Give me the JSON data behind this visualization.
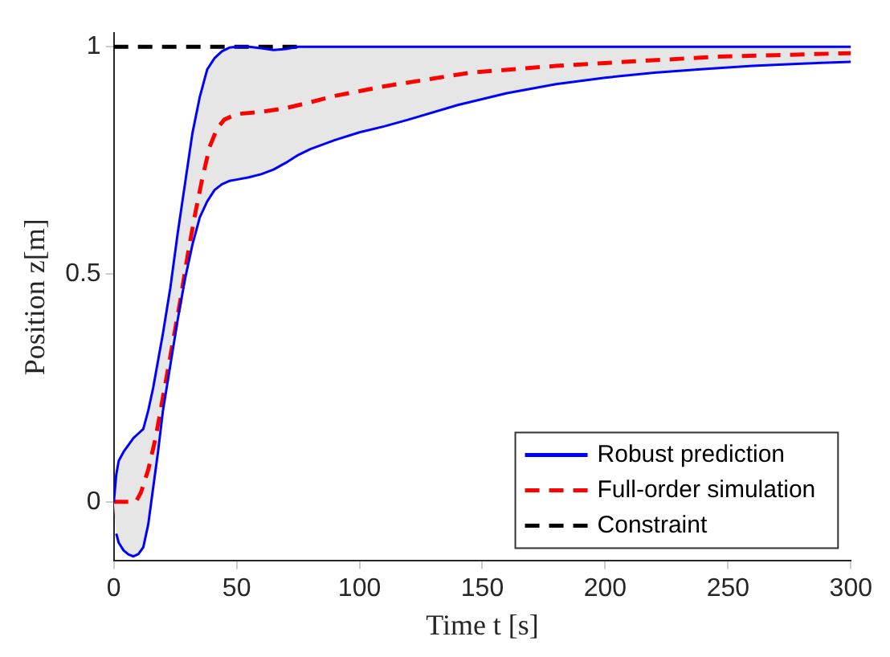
{
  "chart_data": {
    "type": "line",
    "xlabel": "Time t [s]",
    "ylabel": "Position z[m]",
    "xlim": [
      0,
      300
    ],
    "xticks": [
      0,
      50,
      100,
      150,
      200,
      250,
      300
    ],
    "ylim": [
      -0.13,
      1.03
    ],
    "yticks": [
      0,
      0.5,
      1
    ],
    "grid": false,
    "legend": "bottom right",
    "marker": "none",
    "series": [
      {
        "name": "Robust prediction",
        "color": "#0000ff",
        "line_style": "solid",
        "x": [
          0,
          1,
          2,
          4,
          6,
          8,
          10,
          12,
          14,
          16,
          18,
          20,
          23,
          26,
          29,
          32,
          35,
          38,
          41,
          44,
          47,
          50,
          55,
          60,
          65,
          70,
          75,
          80,
          90,
          100,
          110,
          120,
          140,
          160,
          180,
          200,
          220,
          240,
          260,
          280,
          300
        ],
        "values": [
          0,
          0.06,
          0.09,
          0.11,
          0.125,
          0.14,
          0.15,
          0.16,
          0.2,
          0.25,
          0.31,
          0.37,
          0.47,
          0.59,
          0.7,
          0.81,
          0.89,
          0.95,
          0.975,
          0.99,
          0.998,
          1,
          1,
          0.997,
          0.993,
          0.995,
          1,
          1,
          1,
          1,
          1,
          1,
          1,
          1,
          1,
          1,
          1,
          1,
          1,
          1,
          1
        ],
        "lower": [
          0,
          -0.07,
          -0.09,
          -0.107,
          -0.116,
          -0.12,
          -0.115,
          -0.1,
          -0.05,
          0.03,
          0.11,
          0.2,
          0.3,
          0.4,
          0.49,
          0.565,
          0.625,
          0.66,
          0.685,
          0.698,
          0.705,
          0.708,
          0.713,
          0.72,
          0.73,
          0.745,
          0.762,
          0.775,
          0.795,
          0.812,
          0.825,
          0.84,
          0.872,
          0.898,
          0.918,
          0.932,
          0.943,
          0.951,
          0.958,
          0.963,
          0.967
        ],
        "upper": [
          0,
          0.06,
          0.09,
          0.11,
          0.125,
          0.14,
          0.15,
          0.16,
          0.2,
          0.25,
          0.31,
          0.37,
          0.47,
          0.59,
          0.7,
          0.81,
          0.89,
          0.95,
          0.975,
          0.99,
          0.998,
          1,
          1,
          0.997,
          0.993,
          0.995,
          1,
          1,
          1,
          1,
          1,
          1,
          1,
          1,
          1,
          1,
          1,
          1,
          1,
          1,
          1
        ]
      },
      {
        "color": "#0000ff",
        "line_style": "solid",
        "x": [
          1,
          2,
          4,
          6,
          8,
          10,
          12,
          14,
          16,
          18,
          20,
          23,
          26,
          29,
          32,
          35,
          38,
          41,
          44,
          47,
          50,
          55,
          60,
          65,
          70,
          75,
          80,
          90,
          100,
          110,
          120,
          140,
          160,
          180,
          200,
          220,
          240,
          260,
          280,
          300
        ],
        "values": [
          -0.07,
          -0.09,
          -0.107,
          -0.116,
          -0.12,
          -0.115,
          -0.1,
          -0.05,
          0.03,
          0.11,
          0.2,
          0.3,
          0.4,
          0.49,
          0.565,
          0.625,
          0.66,
          0.685,
          0.698,
          0.705,
          0.708,
          0.713,
          0.72,
          0.73,
          0.745,
          0.762,
          0.775,
          0.795,
          0.812,
          0.825,
          0.84,
          0.872,
          0.898,
          0.918,
          0.932,
          0.943,
          0.951,
          0.958,
          0.963,
          0.967
        ]
      },
      {
        "name": "Full-order simulation",
        "color": "#ff0000",
        "line_style": "dashed",
        "x": [
          0,
          9,
          11,
          14,
          17,
          20,
          24,
          27,
          30,
          33,
          36,
          39,
          42,
          45,
          50,
          60,
          70,
          80,
          90,
          110,
          145,
          180,
          212,
          245,
          300
        ],
        "values": [
          0,
          0,
          0.02,
          0.07,
          0.14,
          0.23,
          0.35,
          0.44,
          0.54,
          0.63,
          0.71,
          0.78,
          0.82,
          0.84,
          0.852,
          0.857,
          0.865,
          0.878,
          0.892,
          0.913,
          0.943,
          0.958,
          0.968,
          0.978,
          0.986
        ]
      },
      {
        "name": "Constraint",
        "color": "#000000",
        "line_style": "dashed",
        "x": [
          0,
          75
        ],
        "values": [
          1,
          1
        ]
      }
    ]
  }
}
